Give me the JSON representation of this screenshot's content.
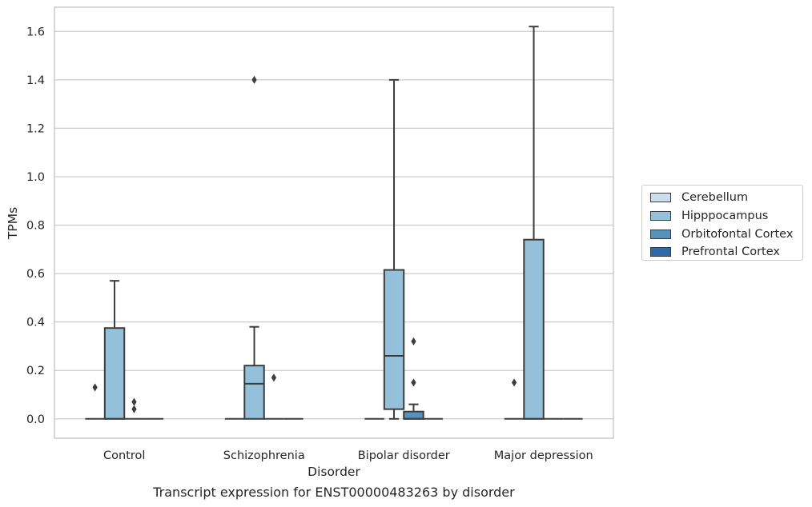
{
  "chart_data": {
    "type": "box",
    "title": "",
    "caption": "Transcript expression for ENST00000483263 by disorder",
    "xlabel": "Disorder",
    "ylabel": "TPMs",
    "ylim": [
      -0.08,
      1.7
    ],
    "yticks": [
      "0.0",
      "0.2",
      "0.4",
      "0.6",
      "0.8",
      "1.0",
      "1.2",
      "1.4",
      "1.6"
    ],
    "ytick_values": [
      0,
      0.2,
      0.4,
      0.6,
      0.8,
      1.0,
      1.2,
      1.4,
      1.6
    ],
    "categories": [
      "Control",
      "Schizophrenia",
      "Bipolar disorder",
      "Major depression"
    ],
    "grid": "horizontal",
    "legend_position": "right",
    "series": [
      {
        "name": "Cerebellum",
        "color": "#cddfee",
        "boxes": [
          {
            "q1": 0,
            "median": 0,
            "q3": 0,
            "whislo": 0,
            "whishi": 0,
            "fliers": [
              0.13
            ]
          },
          {
            "q1": 0,
            "median": 0,
            "q3": 0,
            "whislo": 0,
            "whishi": 0,
            "fliers": []
          },
          {
            "q1": 0,
            "median": 0,
            "q3": 0,
            "whislo": 0,
            "whishi": 0,
            "fliers": []
          },
          {
            "q1": 0,
            "median": 0,
            "q3": 0,
            "whislo": 0,
            "whishi": 0,
            "fliers": [
              0.15
            ]
          }
        ]
      },
      {
        "name": "Hipppocampus",
        "color": "#94c0d9",
        "boxes": [
          {
            "q1": 0,
            "median": 0,
            "q3": 0.375,
            "whislo": 0,
            "whishi": 0.57,
            "fliers": []
          },
          {
            "q1": 0,
            "median": 0.145,
            "q3": 0.22,
            "whislo": 0,
            "whishi": 0.38,
            "fliers": [
              1.4
            ]
          },
          {
            "q1": 0.04,
            "median": 0.26,
            "q3": 0.615,
            "whislo": 0,
            "whishi": 1.4,
            "fliers": []
          },
          {
            "q1": 0,
            "median": 0,
            "q3": 0.74,
            "whislo": 0,
            "whishi": 1.62,
            "fliers": []
          }
        ]
      },
      {
        "name": "Orbitofontal Cortex",
        "color": "#5592be",
        "boxes": [
          {
            "q1": 0,
            "median": 0,
            "q3": 0,
            "whislo": 0,
            "whishi": 0,
            "fliers": [
              0.07,
              0.04
            ]
          },
          {
            "q1": 0,
            "median": 0,
            "q3": 0,
            "whislo": 0,
            "whishi": 0,
            "fliers": [
              0.17
            ]
          },
          {
            "q1": 0,
            "median": 0,
            "q3": 0.03,
            "whislo": 0,
            "whishi": 0.06,
            "fliers": [
              0.32,
              0.15
            ]
          },
          {
            "q1": 0,
            "median": 0,
            "q3": 0,
            "whislo": 0,
            "whishi": 0,
            "fliers": []
          }
        ]
      },
      {
        "name": "Prefrontal Cortex",
        "color": "#2f6aa6",
        "boxes": [
          {
            "q1": 0,
            "median": 0,
            "q3": 0,
            "whislo": 0,
            "whishi": 0,
            "fliers": []
          },
          {
            "q1": 0,
            "median": 0,
            "q3": 0,
            "whislo": 0,
            "whishi": 0,
            "fliers": []
          },
          {
            "q1": 0,
            "median": 0,
            "q3": 0,
            "whislo": 0,
            "whishi": 0,
            "fliers": []
          },
          {
            "q1": 0,
            "median": 0,
            "q3": 0,
            "whislo": 0,
            "whishi": 0,
            "fliers": []
          }
        ]
      }
    ]
  }
}
